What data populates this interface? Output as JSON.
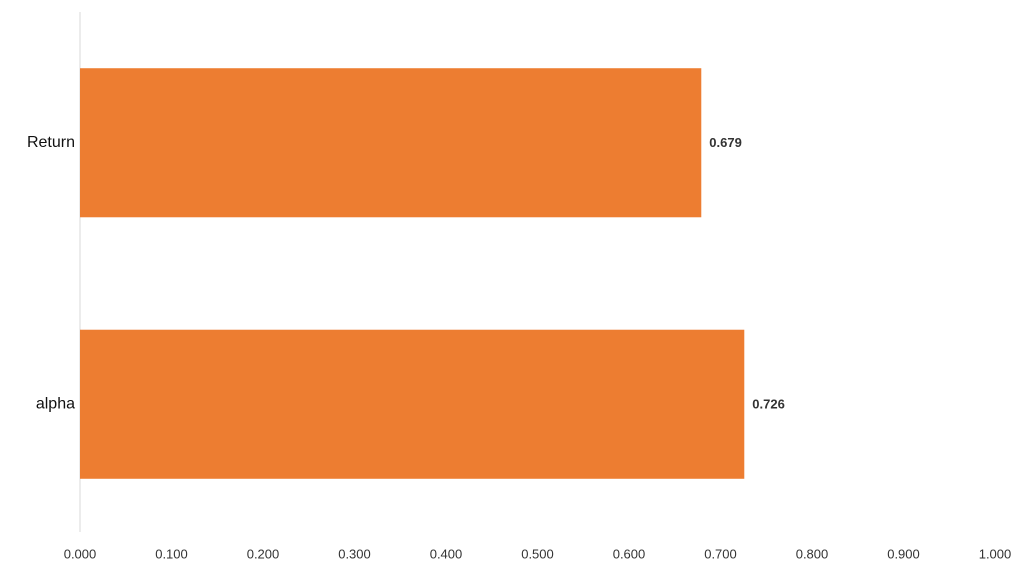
{
  "chart_data": {
    "type": "bar",
    "orientation": "horizontal",
    "categories": [
      "Return",
      "alpha"
    ],
    "values": [
      0.679,
      0.726
    ],
    "color": "#ed7d31",
    "xlim": [
      0,
      1
    ],
    "xticks": [
      {
        "value": 0,
        "label": "0.000"
      },
      {
        "value": 0.1,
        "label": "0.100"
      },
      {
        "value": 0.2,
        "label": "0.200"
      },
      {
        "value": 0.3,
        "label": "0.300"
      },
      {
        "value": 0.4,
        "label": "0.400"
      },
      {
        "value": 0.5,
        "label": "0.500"
      },
      {
        "value": 0.6,
        "label": "0.600"
      },
      {
        "value": 0.7,
        "label": "0.700"
      },
      {
        "value": 0.8,
        "label": "0.800"
      },
      {
        "value": 0.9,
        "label": "0.900"
      },
      {
        "value": 1,
        "label": "1.000"
      }
    ],
    "grid": false
  }
}
